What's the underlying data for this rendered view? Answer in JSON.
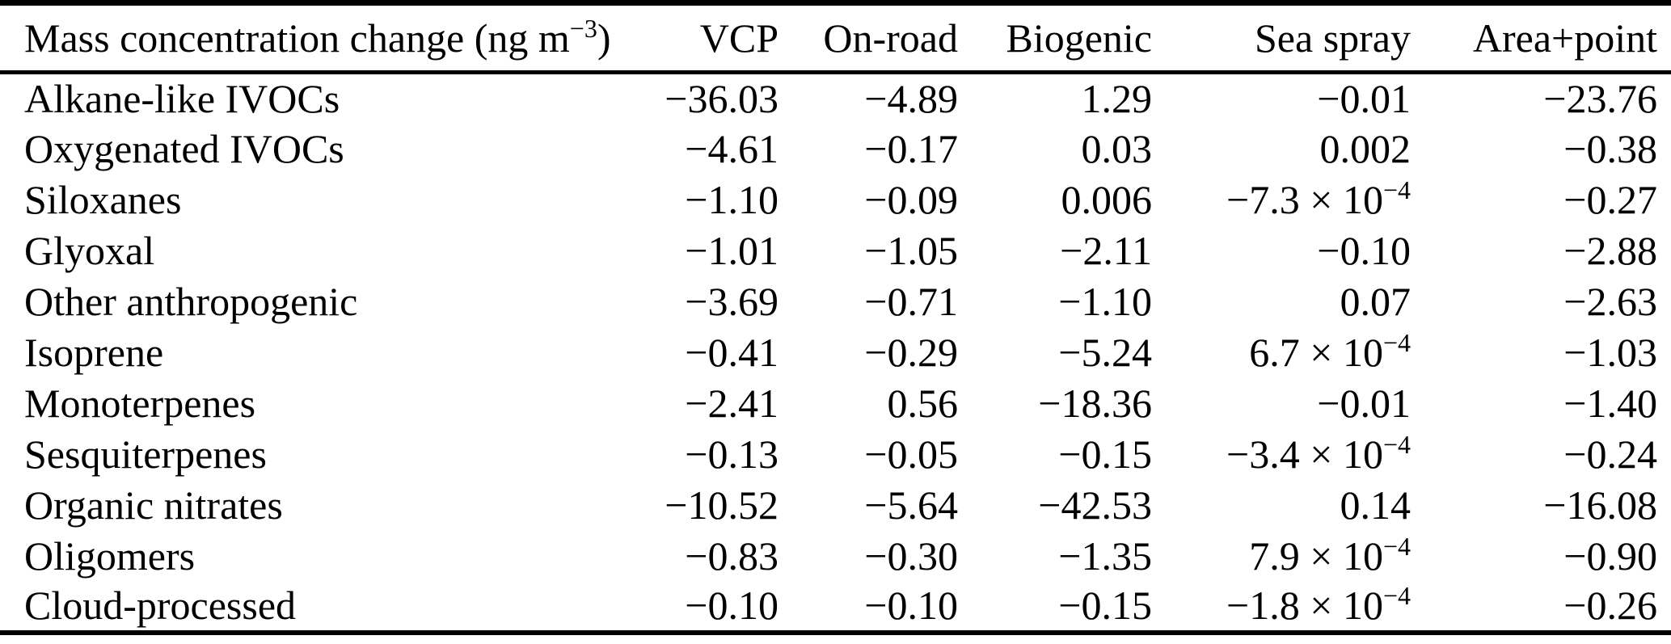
{
  "colors": {
    "text": "#000000",
    "background": "#ffffff",
    "rule": "#000000"
  },
  "table": {
    "header": {
      "label_pre": "Mass concentration change (ng m",
      "label_sup": "−3",
      "label_post": ")",
      "columns": [
        "VCP",
        "On-road",
        "Biogenic",
        "Sea spray",
        "Area+point"
      ]
    },
    "rows": [
      {
        "label": "Alkane-like IVOCs",
        "values": [
          "−36.03",
          "−4.89",
          "1.29",
          "−0.01",
          "−23.76"
        ]
      },
      {
        "label": "Oxygenated IVOCs",
        "values": [
          "−4.61",
          "−0.17",
          "0.03",
          "0.002",
          "−0.38"
        ]
      },
      {
        "label": "Siloxanes",
        "values": [
          "−1.10",
          "−0.09",
          "0.006",
          {
            "m": "−7.3 × 10",
            "e": "−4"
          },
          "−0.27"
        ]
      },
      {
        "label": "Glyoxal",
        "values": [
          "−1.01",
          "−1.05",
          "−2.11",
          "−0.10",
          "−2.88"
        ]
      },
      {
        "label": "Other anthropogenic",
        "values": [
          "−3.69",
          "−0.71",
          "−1.10",
          "0.07",
          "−2.63"
        ]
      },
      {
        "label": "Isoprene",
        "values": [
          "−0.41",
          "−0.29",
          "−5.24",
          {
            "m": "6.7 × 10",
            "e": "−4"
          },
          "−1.03"
        ]
      },
      {
        "label": "Monoterpenes",
        "values": [
          "−2.41",
          "0.56",
          "−18.36",
          "−0.01",
          "−1.40"
        ]
      },
      {
        "label": "Sesquiterpenes",
        "values": [
          "−0.13",
          "−0.05",
          "−0.15",
          {
            "m": "−3.4 × 10",
            "e": "−4"
          },
          "−0.24"
        ]
      },
      {
        "label": "Organic nitrates",
        "values": [
          "−10.52",
          "−5.64",
          "−42.53",
          "0.14",
          "−16.08"
        ]
      },
      {
        "label": "Oligomers",
        "values": [
          "−0.83",
          "−0.30",
          "−1.35",
          {
            "m": "7.9 × 10",
            "e": "−4"
          },
          "−0.90"
        ]
      },
      {
        "label": "Cloud-processed",
        "values": [
          "−0.10",
          "−0.10",
          "−0.15",
          {
            "m": "−1.8 × 10",
            "e": "−4"
          },
          "−0.26"
        ]
      }
    ]
  }
}
